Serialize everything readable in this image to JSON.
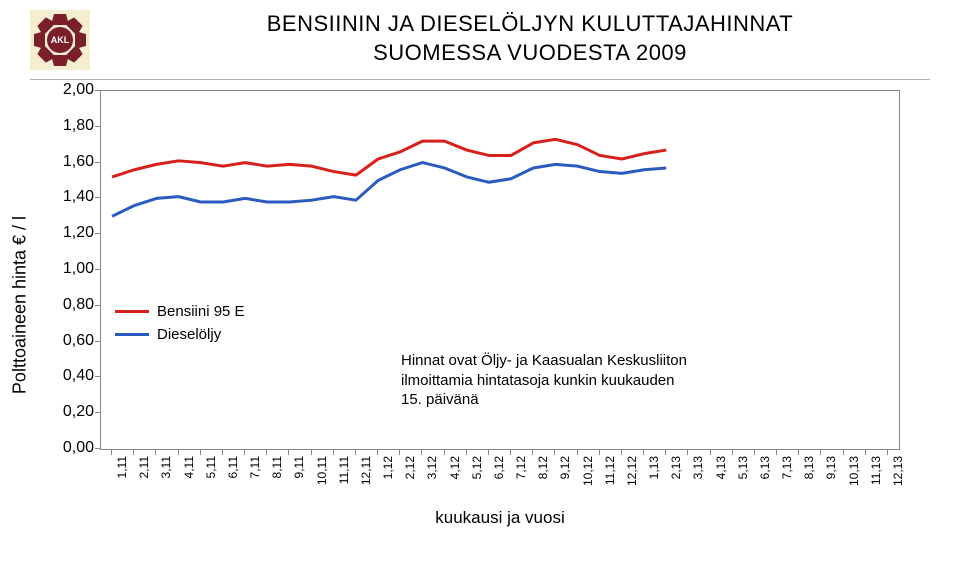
{
  "title_line1": "BENSIININ JA DIESELÖLJYN KULUTTAJAHINNAT",
  "title_line2": "SUOMESSA VUODESTA 2009",
  "logo_text": "AKL",
  "logo_bg": "#f5edd0",
  "logo_color": "#7a1e2b",
  "y_axis_label": "Polttoaineen hinta € / l",
  "x_axis_label": "kuukausi ja vuosi",
  "chart": {
    "ylim": [
      0.0,
      2.0
    ],
    "ytick_step": 0.2,
    "categories": [
      "1,11",
      "2,11",
      "3,11",
      "4,11",
      "5,11",
      "6,11",
      "7,11",
      "8,11",
      "9,11",
      "10,11",
      "11,11",
      "12,11",
      "1,12",
      "2,12",
      "3,12",
      "4,12",
      "5,12",
      "6,12",
      "7,12",
      "8,12",
      "9,12",
      "10,12",
      "11,12",
      "12,12",
      "1,13",
      "2,13",
      "3,13",
      "4,13",
      "5,13",
      "6,13",
      "7,13",
      "8,13",
      "9,13",
      "10,13",
      "11,13",
      "12,13"
    ],
    "series": [
      {
        "name": "Bensiini 95 E",
        "color": "#d8201a",
        "width": 3,
        "data": [
          1.52,
          1.56,
          1.59,
          1.61,
          1.6,
          1.58,
          1.6,
          1.58,
          1.59,
          1.58,
          1.55,
          1.53,
          1.62,
          1.66,
          1.72,
          1.72,
          1.67,
          1.64,
          1.64,
          1.71,
          1.73,
          1.7,
          1.64,
          1.62,
          1.65,
          1.67
        ]
      },
      {
        "name": "Dieselöljy",
        "color": "#2b5bbf",
        "width": 3,
        "data": [
          1.3,
          1.36,
          1.4,
          1.41,
          1.38,
          1.38,
          1.4,
          1.38,
          1.38,
          1.39,
          1.41,
          1.39,
          1.5,
          1.56,
          1.6,
          1.57,
          1.52,
          1.49,
          1.51,
          1.57,
          1.59,
          1.58,
          1.55,
          1.54,
          1.56,
          1.57
        ]
      }
    ],
    "plot_border_color": "#888888",
    "background": "#ffffff"
  },
  "legend": {
    "items": [
      {
        "label": "Bensiini 95 E",
        "color": "#d8201a"
      },
      {
        "label": "Dieselöljy",
        "color": "#2b5bbf"
      }
    ]
  },
  "annotation": {
    "line1": "Hinnat ovat Öljy- ja Kaasualan Keskusliiton",
    "line2": "ilmoittamia hintatasoja kunkin kuukauden",
    "line3": "15. päivänä"
  }
}
